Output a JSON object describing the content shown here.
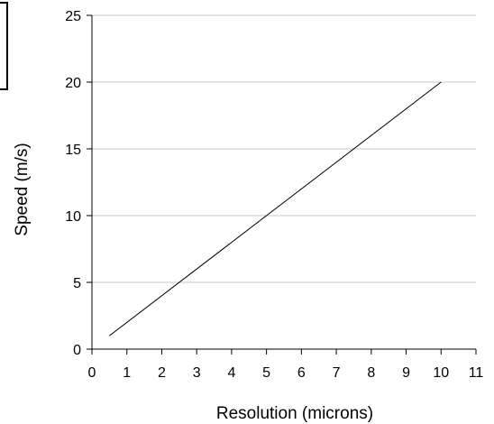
{
  "chart_data": {
    "type": "line",
    "xlabel": "Resolution (microns)",
    "ylabel": "Speed (m/s)",
    "xlim": [
      0,
      11
    ],
    "ylim": [
      0,
      25
    ],
    "x_ticks": [
      0,
      1,
      2,
      3,
      4,
      5,
      6,
      7,
      8,
      9,
      10,
      11
    ],
    "y_ticks": [
      0,
      5,
      10,
      15,
      20,
      25
    ],
    "grid": "horizontal",
    "series": [
      {
        "x": [
          0.5,
          10
        ],
        "y": [
          1,
          20
        ],
        "color": "#000000"
      }
    ]
  }
}
